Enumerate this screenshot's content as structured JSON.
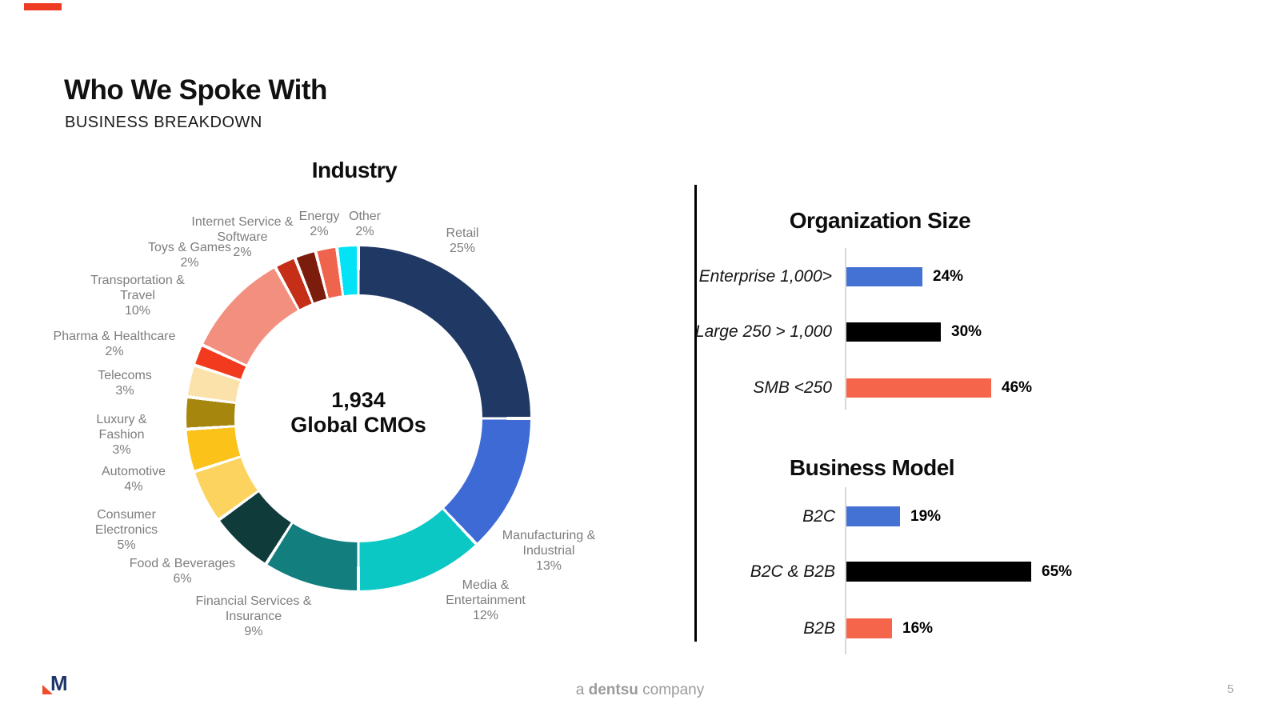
{
  "slide": {
    "title": "Who We Spoke With",
    "subtitle": "BUSINESS BREAKDOWN",
    "page_number": "5",
    "footer_brand": {
      "prefix": "a",
      "brand": "dentsu",
      "suffix": "company"
    },
    "logo_letter": "M"
  },
  "chart_data": [
    {
      "type": "pie",
      "subtype": "donut",
      "title": "Industry",
      "center_label": {
        "line1": "1,934",
        "line2": "Global CMOs"
      },
      "slices": [
        {
          "label_lines": [
            "Retail"
          ],
          "value_label": "25%",
          "pct": 25,
          "color": "#1F3864"
        },
        {
          "label_lines": [
            "Manufacturing &",
            "Industrial"
          ],
          "value_label": "13%",
          "pct": 13,
          "color": "#3D6AD5"
        },
        {
          "label_lines": [
            "Media &",
            "Entertainment"
          ],
          "value_label": "12%",
          "pct": 12,
          "color": "#0BC8C4"
        },
        {
          "label_lines": [
            "Financial Services &",
            "Insurance"
          ],
          "value_label": "9%",
          "pct": 9,
          "color": "#137E7E"
        },
        {
          "label_lines": [
            "Food & Beverages"
          ],
          "value_label": "6%",
          "pct": 6,
          "color": "#0F3C3B"
        },
        {
          "label_lines": [
            "Consumer",
            "Electronics"
          ],
          "value_label": "5%",
          "pct": 5,
          "color": "#FBD35E"
        },
        {
          "label_lines": [
            "Automotive"
          ],
          "value_label": "4%",
          "pct": 4,
          "color": "#FBC219"
        },
        {
          "label_lines": [
            "Luxury &",
            "Fashion"
          ],
          "value_label": "3%",
          "pct": 3,
          "color": "#A6860D"
        },
        {
          "label_lines": [
            "Telecoms"
          ],
          "value_label": "3%",
          "pct": 3,
          "color": "#FBE2AB"
        },
        {
          "label_lines": [
            "Pharma & Healthcare"
          ],
          "value_label": "2%",
          "pct": 2,
          "color": "#F23A1E"
        },
        {
          "label_lines": [
            "Transportation &",
            "Travel"
          ],
          "value_label": "10%",
          "pct": 10,
          "color": "#F28F7E"
        },
        {
          "label_lines": [
            "Toys & Games"
          ],
          "value_label": "2%",
          "pct": 2,
          "color": "#C52F17"
        },
        {
          "label_lines": [
            "Internet Service &",
            "Software"
          ],
          "value_label": "2%",
          "pct": 2,
          "color": "#7C1C0D"
        },
        {
          "label_lines": [
            "Energy"
          ],
          "value_label": "2%",
          "pct": 2,
          "color": "#EF644D"
        },
        {
          "label_lines": [
            "Other"
          ],
          "value_label": "2%",
          "pct": 2,
          "color": "#04E2F5"
        }
      ]
    },
    {
      "type": "bar",
      "orientation": "horizontal",
      "title": "Organization Size",
      "categories": [
        "Enterprise 1,000>",
        "Large 250 > 1,000",
        "SMB <250"
      ],
      "values": [
        24,
        30,
        46
      ],
      "value_labels": [
        "24%",
        "30%",
        "46%"
      ],
      "colors": [
        "#4472D4",
        "#000000",
        "#F5654C"
      ],
      "xlim": [
        0,
        50
      ]
    },
    {
      "type": "bar",
      "orientation": "horizontal",
      "title": "Business Model",
      "categories": [
        "B2C",
        "B2C & B2B",
        "B2B"
      ],
      "values": [
        19,
        65,
        16
      ],
      "value_labels": [
        "19%",
        "65%",
        "16%"
      ],
      "colors": [
        "#4472D4",
        "#000000",
        "#F5654C"
      ],
      "xlim": [
        0,
        70
      ]
    }
  ]
}
